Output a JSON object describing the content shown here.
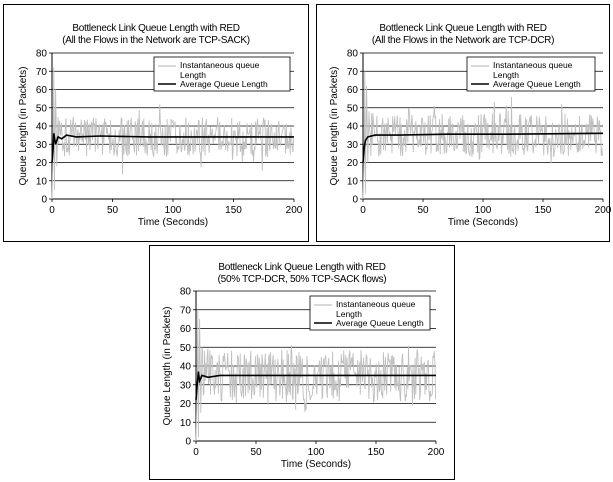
{
  "chart_data": [
    {
      "type": "line",
      "title": "Bottleneck Link Queue Length with RED",
      "subtitle": "(All the Flows in the Network are TCP-SACK)",
      "xlabel": "Time (Seconds)",
      "ylabel": "Queue Length (in Packets)",
      "xlim": [
        0,
        200
      ],
      "ylim": [
        0,
        80
      ],
      "xticks": [
        "0",
        "50",
        "100",
        "150",
        "200"
      ],
      "yticks": [
        "0",
        "10",
        "20",
        "30",
        "40",
        "50",
        "60",
        "70",
        "80"
      ],
      "grid": "horizontal",
      "legend_position": "top-right",
      "series": [
        {
          "name": "Instantaneous queue Length",
          "color": "#c0c0c0",
          "kind": "noisy",
          "center": 34,
          "amplitude": 11,
          "min": 10,
          "max": 58,
          "seed": 3,
          "initial": [
            [
              0,
              0
            ],
            [
              1,
              30
            ],
            [
              1.5,
              72
            ],
            [
              2,
              5
            ],
            [
              3,
              60
            ],
            [
              4,
              18
            ],
            [
              5,
              45
            ]
          ]
        },
        {
          "name": "Average Queue Length",
          "color": "#000000",
          "points": [
            [
              0,
              20
            ],
            [
              1,
              28
            ],
            [
              1.5,
              36
            ],
            [
              3,
              30
            ],
            [
              5,
              34
            ],
            [
              8,
              33
            ],
            [
              12,
              35
            ],
            [
              20,
              34
            ],
            [
              40,
              34.5
            ],
            [
              80,
              34
            ],
            [
              200,
              34
            ]
          ]
        }
      ]
    },
    {
      "type": "line",
      "title": "Bottleneck Link Queue Length with RED",
      "subtitle": "(All the Flows in the Network are TCP-DCR)",
      "xlabel": "Time (Seconds)",
      "ylabel": "Queue Length (in Packets)",
      "xlim": [
        0,
        200
      ],
      "ylim": [
        0,
        80
      ],
      "xticks": [
        "0",
        "50",
        "100",
        "150",
        "200"
      ],
      "yticks": [
        "0",
        "10",
        "20",
        "30",
        "40",
        "50",
        "60",
        "70",
        "80"
      ],
      "grid": "horizontal",
      "legend_position": "top-right",
      "series": [
        {
          "name": "Instantaneous queue Length",
          "color": "#c0c0c0",
          "kind": "noisy",
          "center": 35,
          "amplitude": 12,
          "min": 10,
          "max": 60,
          "seed": 7,
          "initial": [
            [
              0,
              0
            ],
            [
              1,
              25
            ],
            [
              1.5,
              70
            ],
            [
              2,
              3
            ],
            [
              3,
              62
            ],
            [
              4,
              20
            ],
            [
              5,
              48
            ]
          ]
        },
        {
          "name": "Average Queue Length",
          "color": "#000000",
          "points": [
            [
              0,
              20
            ],
            [
              1,
              28
            ],
            [
              2,
              32
            ],
            [
              4,
              34
            ],
            [
              10,
              35
            ],
            [
              30,
              35
            ],
            [
              70,
              35.5
            ],
            [
              120,
              35.5
            ],
            [
              200,
              36
            ]
          ]
        }
      ]
    },
    {
      "type": "line",
      "title": "Bottleneck Link Queue Length with RED",
      "subtitle": "(50% TCP-DCR, 50% TCP-SACK flows)",
      "xlabel": "Time (Seconds)",
      "ylabel": "Queue Length (in Packets)",
      "xlim": [
        0,
        200
      ],
      "ylim": [
        0,
        80
      ],
      "xticks": [
        "0",
        "50",
        "100",
        "150",
        "200"
      ],
      "yticks": [
        "0",
        "10",
        "20",
        "30",
        "40",
        "50",
        "60",
        "70",
        "80"
      ],
      "grid": "horizontal",
      "legend_position": "top-right",
      "series": [
        {
          "name": "Instantaneous queue Length",
          "color": "#c0c0c0",
          "kind": "noisy",
          "center": 35,
          "amplitude": 14,
          "min": 10,
          "max": 64,
          "seed": 11,
          "initial": [
            [
              0,
              0
            ],
            [
              1,
              30
            ],
            [
              1.5,
              70
            ],
            [
              2,
              2
            ],
            [
              3,
              65
            ],
            [
              4,
              15
            ],
            [
              5,
              50
            ]
          ]
        },
        {
          "name": "Average Queue Length",
          "color": "#000000",
          "points": [
            [
              0,
              22
            ],
            [
              1,
              30
            ],
            [
              2,
              37
            ],
            [
              3,
              32
            ],
            [
              5,
              35
            ],
            [
              10,
              34
            ],
            [
              20,
              35
            ],
            [
              40,
              35
            ],
            [
              100,
              35
            ],
            [
              200,
              35
            ]
          ]
        }
      ]
    }
  ]
}
